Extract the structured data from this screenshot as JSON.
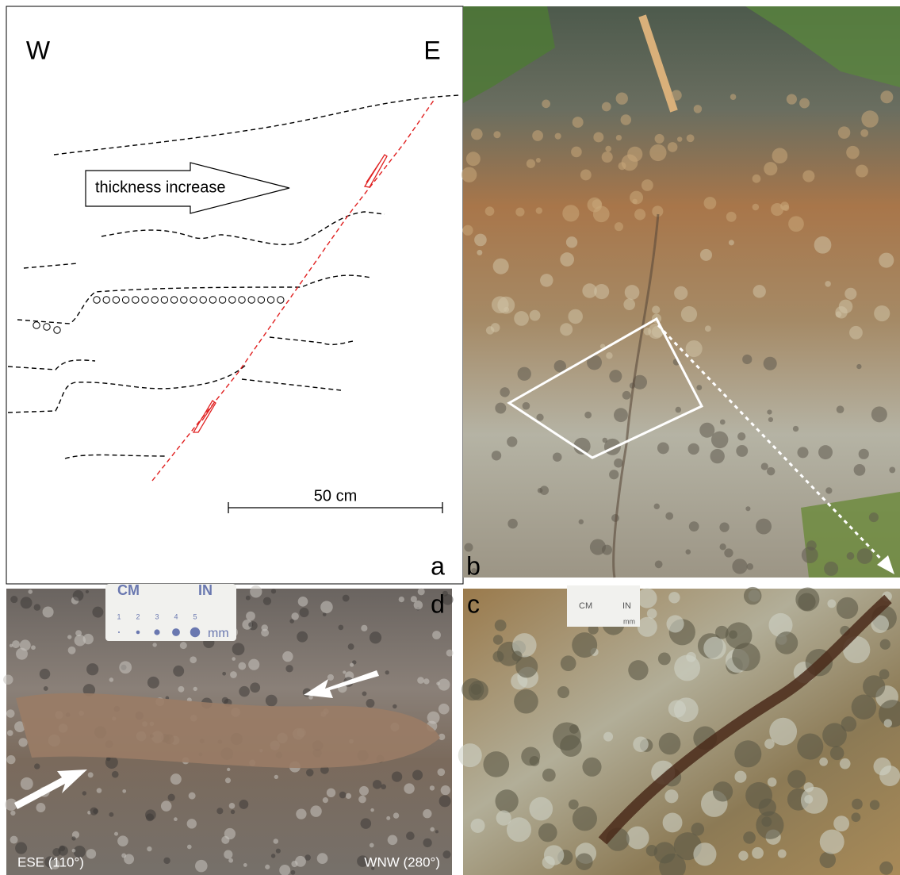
{
  "panels": {
    "a": {
      "label": "a",
      "west": "W",
      "east": "E",
      "arrow_text": "thickness increase",
      "scale_text": "50 cm"
    },
    "b": {
      "label": "b"
    },
    "c": {
      "label": "c",
      "card": {
        "cm": "CM",
        "in": "IN",
        "mm": "mm"
      }
    },
    "d": {
      "label": "d",
      "left_direction": "ESE (110°)",
      "right_direction": "WNW (280°)",
      "card": {
        "cm": "CM",
        "in": "IN",
        "mm": "mm",
        "ticks": [
          "1",
          "2",
          "3",
          "4",
          "5"
        ]
      }
    }
  }
}
